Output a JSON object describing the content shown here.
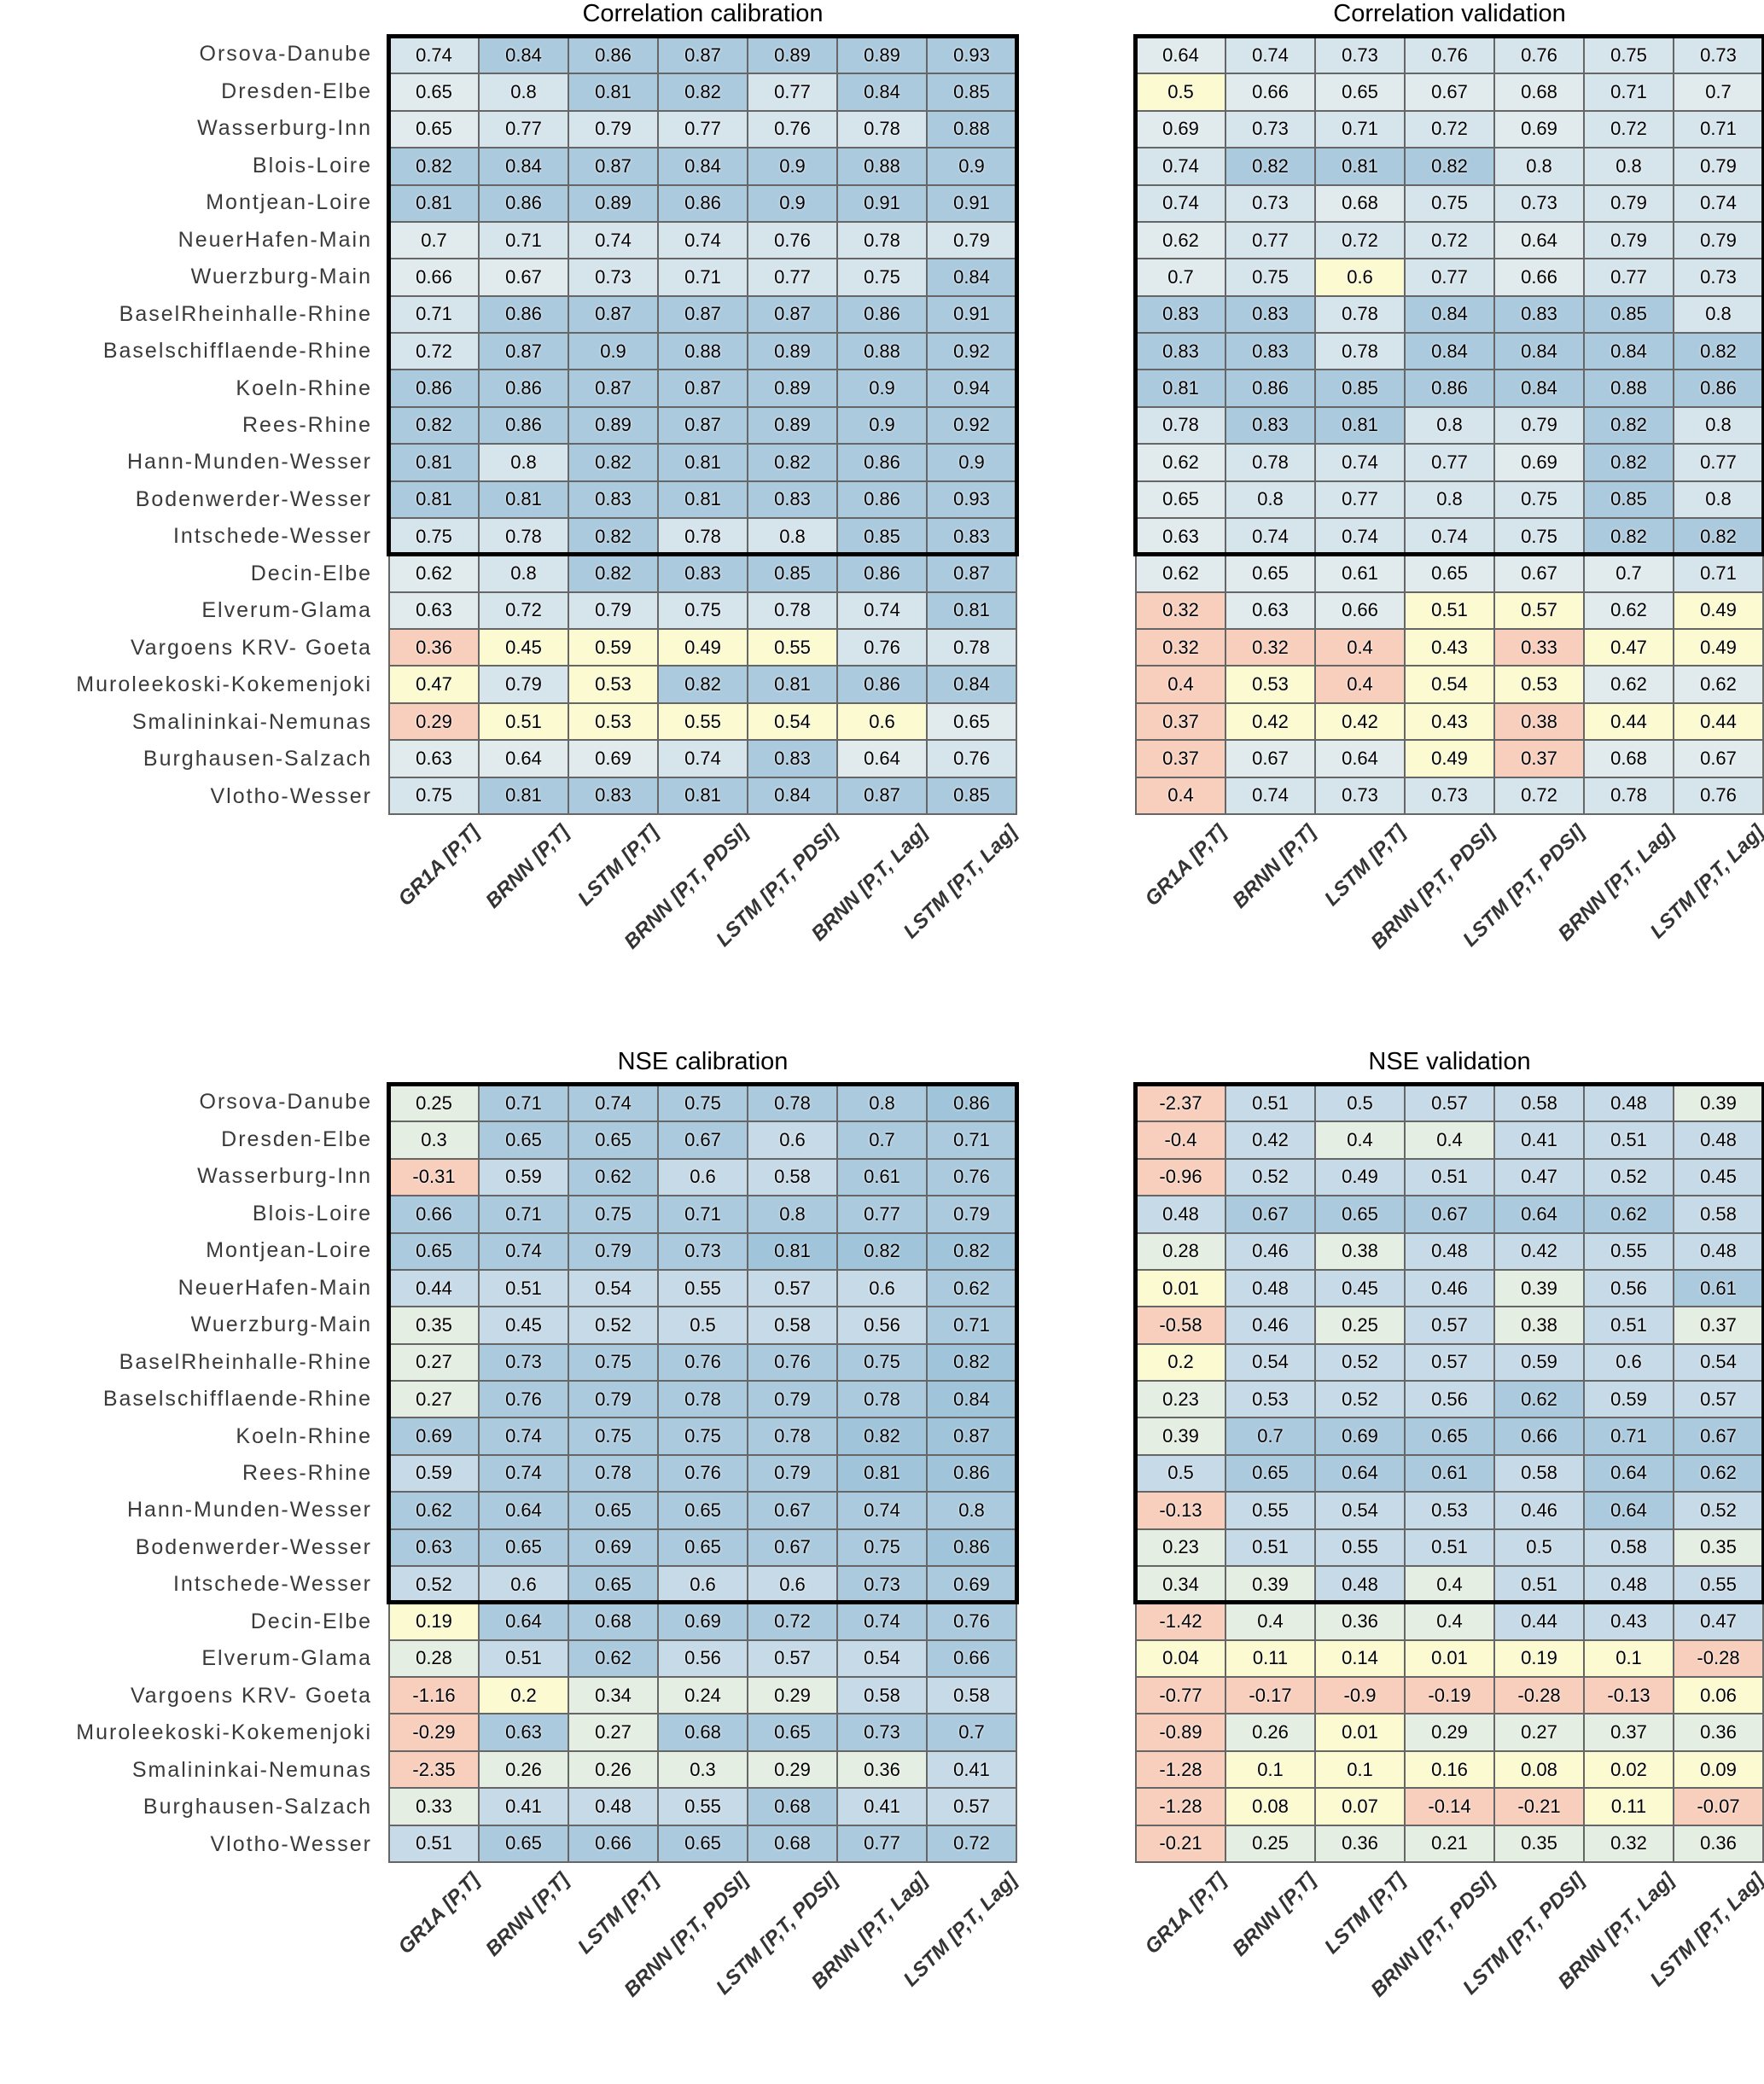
{
  "chart_data": {
    "type": "heatmap",
    "description": "Four heatmap panels of model skill scores per river gauging station",
    "row_labels": [
      "Orsova-Danube",
      "Dresden-Elbe",
      "Wasserburg-Inn",
      "Blois-Loire",
      "Montjean-Loire",
      "NeuerHafen-Main",
      "Wuerzburg-Main",
      "BaselRheinhalle-Rhine",
      "Baselschifflaende-Rhine",
      "Koeln-Rhine",
      "Rees-Rhine",
      "Hann-Munden-Wesser",
      "Bodenwerder-Wesser",
      "Intschede-Wesser",
      "Decin-Elbe",
      "Elverum-Glama",
      "Vargoens KRV- Goeta",
      "Muroleekoski-Kokemenjoki",
      "Smalininkai-Nemunas",
      "Burghausen-Salzach",
      "Vlotho-Wesser"
    ],
    "col_labels": [
      "GR1A [P,T]",
      "BRNN [P,T]",
      "LSTM [P,T]",
      "BRNN [P,T, PDSI]",
      "LSTM [P,T, PDSI]",
      "BRNN [P,T, Lag]",
      "LSTM [P,T, Lag]"
    ],
    "highlight_row_span": [
      1,
      14
    ],
    "panels": [
      {
        "title": "Correlation calibration",
        "metric": "correlation",
        "values": [
          [
            0.74,
            0.84,
            0.86,
            0.87,
            0.89,
            0.89,
            0.93
          ],
          [
            0.65,
            0.8,
            0.81,
            0.82,
            0.77,
            0.84,
            0.85
          ],
          [
            0.65,
            0.77,
            0.79,
            0.77,
            0.76,
            0.78,
            0.88
          ],
          [
            0.82,
            0.84,
            0.87,
            0.84,
            0.9,
            0.88,
            0.9
          ],
          [
            0.81,
            0.86,
            0.89,
            0.86,
            0.9,
            0.91,
            0.91
          ],
          [
            0.7,
            0.71,
            0.74,
            0.74,
            0.76,
            0.78,
            0.79
          ],
          [
            0.66,
            0.67,
            0.73,
            0.71,
            0.77,
            0.75,
            0.84
          ],
          [
            0.71,
            0.86,
            0.87,
            0.87,
            0.87,
            0.86,
            0.91
          ],
          [
            0.72,
            0.87,
            0.9,
            0.88,
            0.89,
            0.88,
            0.92
          ],
          [
            0.86,
            0.86,
            0.87,
            0.87,
            0.89,
            0.9,
            0.94
          ],
          [
            0.82,
            0.86,
            0.89,
            0.87,
            0.89,
            0.9,
            0.92
          ],
          [
            0.81,
            0.8,
            0.82,
            0.81,
            0.82,
            0.86,
            0.9
          ],
          [
            0.81,
            0.81,
            0.83,
            0.81,
            0.83,
            0.86,
            0.93
          ],
          [
            0.75,
            0.78,
            0.82,
            0.78,
            0.8,
            0.85,
            0.83
          ],
          [
            0.62,
            0.8,
            0.82,
            0.83,
            0.85,
            0.86,
            0.87
          ],
          [
            0.63,
            0.72,
            0.79,
            0.75,
            0.78,
            0.74,
            0.81
          ],
          [
            0.36,
            0.45,
            0.59,
            0.49,
            0.55,
            0.76,
            0.78
          ],
          [
            0.47,
            0.79,
            0.53,
            0.82,
            0.81,
            0.86,
            0.84
          ],
          [
            0.29,
            0.51,
            0.53,
            0.55,
            0.54,
            0.6,
            0.65
          ],
          [
            0.63,
            0.64,
            0.69,
            0.74,
            0.83,
            0.64,
            0.76
          ],
          [
            0.75,
            0.81,
            0.83,
            0.81,
            0.84,
            0.87,
            0.85
          ]
        ]
      },
      {
        "title": "Correlation validation",
        "metric": "correlation",
        "values": [
          [
            0.64,
            0.74,
            0.73,
            0.76,
            0.76,
            0.75,
            0.73
          ],
          [
            0.5,
            0.66,
            0.65,
            0.67,
            0.68,
            0.71,
            0.7
          ],
          [
            0.69,
            0.73,
            0.71,
            0.72,
            0.69,
            0.72,
            0.71
          ],
          [
            0.74,
            0.82,
            0.81,
            0.82,
            0.8,
            0.8,
            0.79
          ],
          [
            0.74,
            0.73,
            0.68,
            0.75,
            0.73,
            0.79,
            0.74
          ],
          [
            0.62,
            0.77,
            0.72,
            0.72,
            0.64,
            0.79,
            0.79
          ],
          [
            0.7,
            0.75,
            0.6,
            0.77,
            0.66,
            0.77,
            0.73
          ],
          [
            0.83,
            0.83,
            0.78,
            0.84,
            0.83,
            0.85,
            0.8
          ],
          [
            0.83,
            0.83,
            0.78,
            0.84,
            0.84,
            0.84,
            0.82
          ],
          [
            0.81,
            0.86,
            0.85,
            0.86,
            0.84,
            0.88,
            0.86
          ],
          [
            0.78,
            0.83,
            0.81,
            0.8,
            0.79,
            0.82,
            0.8
          ],
          [
            0.62,
            0.78,
            0.74,
            0.77,
            0.69,
            0.82,
            0.77
          ],
          [
            0.65,
            0.8,
            0.77,
            0.8,
            0.75,
            0.85,
            0.8
          ],
          [
            0.63,
            0.74,
            0.74,
            0.74,
            0.75,
            0.82,
            0.82
          ],
          [
            0.62,
            0.65,
            0.61,
            0.65,
            0.67,
            0.7,
            0.71
          ],
          [
            0.32,
            0.63,
            0.66,
            0.51,
            0.57,
            0.62,
            0.49
          ],
          [
            0.32,
            0.32,
            0.4,
            0.43,
            0.33,
            0.47,
            0.49
          ],
          [
            0.4,
            0.53,
            0.4,
            0.54,
            0.53,
            0.62,
            0.62
          ],
          [
            0.37,
            0.42,
            0.42,
            0.43,
            0.38,
            0.44,
            0.44
          ],
          [
            0.37,
            0.67,
            0.64,
            0.49,
            0.37,
            0.68,
            0.67
          ],
          [
            0.4,
            0.74,
            0.73,
            0.73,
            0.72,
            0.78,
            0.76
          ]
        ]
      },
      {
        "title": "NSE calibration",
        "metric": "nse",
        "values": [
          [
            0.25,
            0.71,
            0.74,
            0.75,
            0.78,
            0.8,
            0.86
          ],
          [
            0.3,
            0.65,
            0.65,
            0.67,
            0.6,
            0.7,
            0.71
          ],
          [
            -0.31,
            0.59,
            0.62,
            0.6,
            0.58,
            0.61,
            0.76
          ],
          [
            0.66,
            0.71,
            0.75,
            0.71,
            0.8,
            0.77,
            0.79
          ],
          [
            0.65,
            0.74,
            0.79,
            0.73,
            0.81,
            0.82,
            0.82
          ],
          [
            0.44,
            0.51,
            0.54,
            0.55,
            0.57,
            0.6,
            0.62
          ],
          [
            0.35,
            0.45,
            0.52,
            0.5,
            0.58,
            0.56,
            0.71
          ],
          [
            0.27,
            0.73,
            0.75,
            0.76,
            0.76,
            0.75,
            0.82
          ],
          [
            0.27,
            0.76,
            0.79,
            0.78,
            0.79,
            0.78,
            0.84
          ],
          [
            0.69,
            0.74,
            0.75,
            0.75,
            0.78,
            0.82,
            0.87
          ],
          [
            0.59,
            0.74,
            0.78,
            0.76,
            0.79,
            0.81,
            0.86
          ],
          [
            0.62,
            0.64,
            0.65,
            0.65,
            0.67,
            0.74,
            0.8
          ],
          [
            0.63,
            0.65,
            0.69,
            0.65,
            0.67,
            0.75,
            0.86
          ],
          [
            0.52,
            0.6,
            0.65,
            0.6,
            0.6,
            0.73,
            0.69
          ],
          [
            0.19,
            0.64,
            0.68,
            0.69,
            0.72,
            0.74,
            0.76
          ],
          [
            0.28,
            0.51,
            0.62,
            0.56,
            0.57,
            0.54,
            0.66
          ],
          [
            -1.16,
            0.2,
            0.34,
            0.24,
            0.29,
            0.58,
            0.58
          ],
          [
            -0.29,
            0.63,
            0.27,
            0.68,
            0.65,
            0.73,
            0.7
          ],
          [
            -2.35,
            0.26,
            0.26,
            0.3,
            0.29,
            0.36,
            0.41
          ],
          [
            0.33,
            0.41,
            0.48,
            0.55,
            0.68,
            0.41,
            0.57
          ],
          [
            0.51,
            0.65,
            0.66,
            0.65,
            0.68,
            0.77,
            0.72
          ]
        ]
      },
      {
        "title": "NSE validation",
        "metric": "nse",
        "values": [
          [
            -2.37,
            0.51,
            0.5,
            0.57,
            0.58,
            0.48,
            0.39
          ],
          [
            -0.4,
            0.42,
            0.4,
            0.4,
            0.41,
            0.51,
            0.48
          ],
          [
            -0.96,
            0.52,
            0.49,
            0.51,
            0.47,
            0.52,
            0.45
          ],
          [
            0.48,
            0.67,
            0.65,
            0.67,
            0.64,
            0.62,
            0.58
          ],
          [
            0.28,
            0.46,
            0.38,
            0.48,
            0.42,
            0.55,
            0.48
          ],
          [
            0.01,
            0.48,
            0.45,
            0.46,
            0.39,
            0.56,
            0.61
          ],
          [
            -0.58,
            0.46,
            0.25,
            0.57,
            0.38,
            0.51,
            0.37
          ],
          [
            0.2,
            0.54,
            0.52,
            0.57,
            0.59,
            0.6,
            0.54
          ],
          [
            0.23,
            0.53,
            0.52,
            0.56,
            0.62,
            0.59,
            0.57
          ],
          [
            0.39,
            0.7,
            0.69,
            0.65,
            0.66,
            0.71,
            0.67
          ],
          [
            0.5,
            0.65,
            0.64,
            0.61,
            0.58,
            0.64,
            0.62
          ],
          [
            -0.13,
            0.55,
            0.54,
            0.53,
            0.46,
            0.64,
            0.52
          ],
          [
            0.23,
            0.51,
            0.55,
            0.51,
            0.5,
            0.58,
            0.35
          ],
          [
            0.34,
            0.39,
            0.48,
            0.4,
            0.51,
            0.48,
            0.55
          ],
          [
            -1.42,
            0.4,
            0.36,
            0.4,
            0.44,
            0.43,
            0.47
          ],
          [
            0.04,
            0.11,
            0.14,
            0.01,
            0.19,
            0.1,
            -0.28
          ],
          [
            -0.77,
            -0.17,
            -0.9,
            -0.19,
            -0.28,
            -0.13,
            0.06
          ],
          [
            -0.89,
            0.26,
            0.01,
            0.29,
            0.27,
            0.37,
            0.36
          ],
          [
            -1.28,
            0.1,
            0.1,
            0.16,
            0.08,
            0.02,
            0.09
          ],
          [
            -1.28,
            0.08,
            0.07,
            -0.14,
            -0.21,
            0.11,
            -0.07
          ],
          [
            -0.21,
            0.25,
            0.36,
            0.21,
            0.35,
            0.32,
            0.36
          ]
        ]
      }
    ],
    "color_scales": {
      "correlation": {
        "thresholds": [
          0.4,
          0.6,
          0.7,
          0.8
        ],
        "colors": [
          "#f8cebc",
          "#fbfad1",
          "#e1ebed",
          "#d6e4ec",
          "#abcade"
        ]
      },
      "nse": {
        "thresholds": [
          0,
          0.2,
          0.4,
          0.6,
          0.8
        ],
        "colors": [
          "#f8cebc",
          "#fbfad1",
          "#e5eee2",
          "#c7dae7",
          "#abcade",
          "#a0c4da"
        ]
      },
      "grid_line": "#666666",
      "highlight_border": "#000000",
      "row_label_text": "#3a3a3a",
      "col_label_text": "#333333",
      "cell_text": "#000000"
    },
    "legend_position": "none",
    "grid": true
  }
}
